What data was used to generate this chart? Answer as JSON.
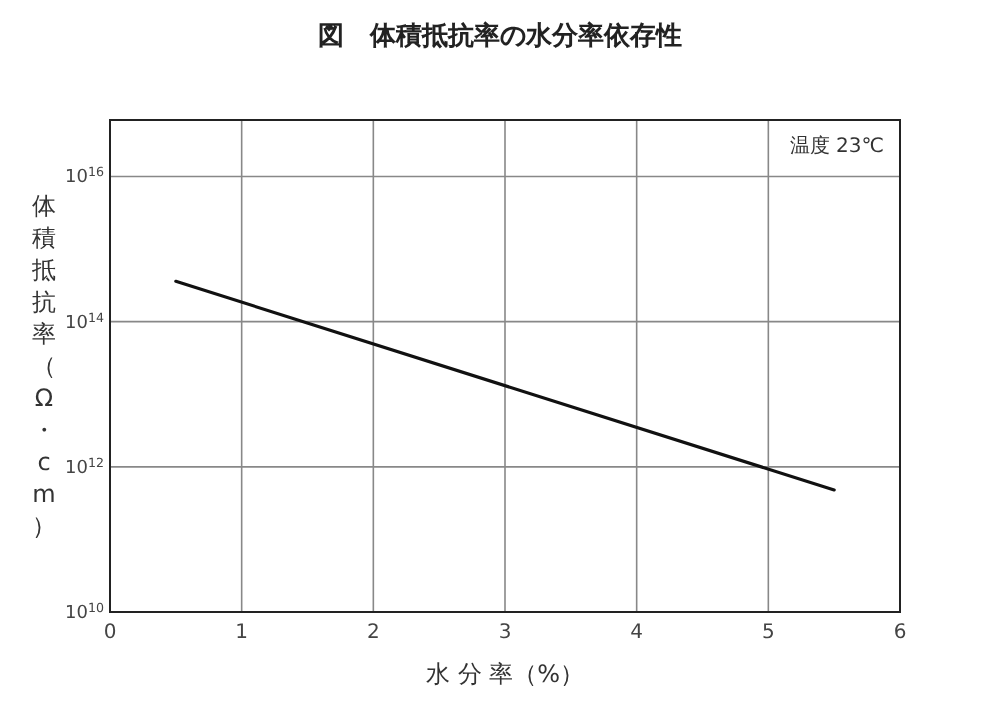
{
  "chart_data": {
    "type": "line",
    "title": "図　体積抵抗率の水分率依存性",
    "xlabel": "水 分 率（%）",
    "ylabel": "体積抵抗率（Ω・cm）",
    "annotations": [
      "温度 23℃"
    ],
    "x": [
      0.5,
      5.5
    ],
    "series": [
      {
        "color": "#111111",
        "values": [
          360000000000000.0,
          480000000000.0
        ]
      }
    ],
    "xlim": [
      0,
      6
    ],
    "xticks": [
      0,
      1,
      2,
      3,
      4,
      5,
      6
    ],
    "ylim": [
      10000000000.0,
      6e+16
    ],
    "yticks": [
      {
        "value": 10000000000.0,
        "label": "10$^{10}$"
      },
      {
        "value": 1000000000000.0,
        "label": "10$^{12}$"
      },
      {
        "value": 100000000000000.0,
        "label": "10$^{14}$"
      },
      {
        "value": 1e+16,
        "label": "10$^{16}$"
      }
    ],
    "log": "y",
    "grid": true,
    "marker": "none",
    "line_style": "solid"
  }
}
